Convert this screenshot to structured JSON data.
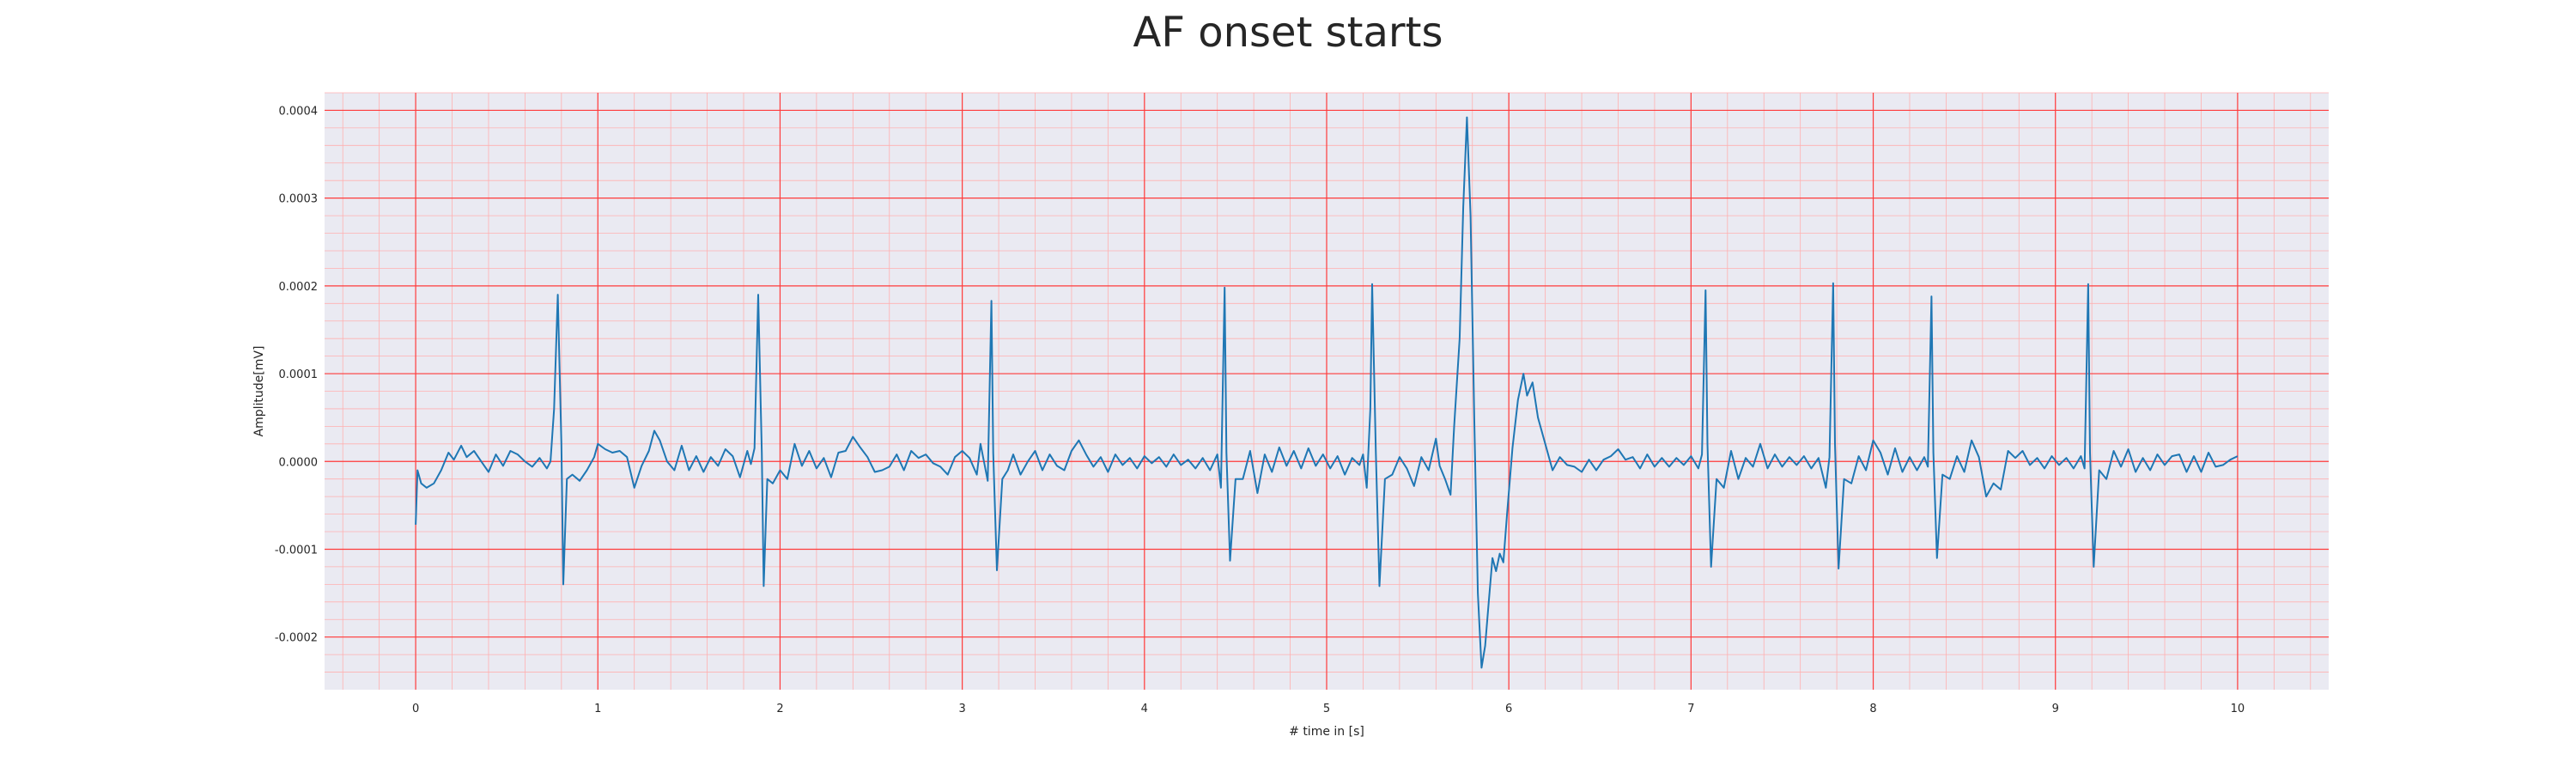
{
  "chart_data": {
    "type": "line",
    "title": "AF onset starts",
    "xlabel": "# time in [s]",
    "ylabel": "Amplitude[mV]",
    "xlim": [
      -0.5,
      10.5
    ],
    "ylim": [
      -0.00026,
      0.00042
    ],
    "x_ticks": [
      0,
      1,
      2,
      3,
      4,
      5,
      6,
      7,
      8,
      9,
      10
    ],
    "x_tick_labels": [
      "0",
      "1",
      "2",
      "3",
      "4",
      "5",
      "6",
      "7",
      "8",
      "9",
      "10"
    ],
    "y_ticks": [
      -0.0002,
      -0.0001,
      0.0,
      0.0001,
      0.0002,
      0.0003,
      0.0004
    ],
    "y_tick_labels": [
      "-0.0002",
      "-0.0001",
      "0.0000",
      "0.0001",
      "0.0002",
      "0.0003",
      "0.0004"
    ],
    "grid": true,
    "colors": {
      "background": "#eaeaf2",
      "major_grid": "#ff3b3b",
      "minor_grid": "#ffb0b0",
      "line": "#1f77b4"
    },
    "series": [
      {
        "points": [
          [
            0.0,
            -7.2e-05
          ],
          [
            0.01,
            -1e-05
          ],
          [
            0.03,
            -2.5e-05
          ],
          [
            0.06,
            -3e-05
          ],
          [
            0.1,
            -2.5e-05
          ],
          [
            0.14,
            -1e-05
          ],
          [
            0.18,
            1e-05
          ],
          [
            0.21,
            2e-06
          ],
          [
            0.25,
            1.8e-05
          ],
          [
            0.28,
            5e-06
          ],
          [
            0.32,
            1.2e-05
          ],
          [
            0.36,
            0.0
          ],
          [
            0.4,
            -1.2e-05
          ],
          [
            0.44,
            8e-06
          ],
          [
            0.48,
            -5e-06
          ],
          [
            0.52,
            1.2e-05
          ],
          [
            0.56,
            8e-06
          ],
          [
            0.6,
            0.0
          ],
          [
            0.64,
            -6e-06
          ],
          [
            0.68,
            4e-06
          ],
          [
            0.72,
            -8e-06
          ],
          [
            0.74,
            0.0
          ],
          [
            0.76,
            6e-05
          ],
          [
            0.78,
            0.00019
          ],
          [
            0.8,
            2e-05
          ],
          [
            0.81,
            -0.00014
          ],
          [
            0.83,
            -2e-05
          ],
          [
            0.86,
            -1.5e-05
          ],
          [
            0.9,
            -2.2e-05
          ],
          [
            0.94,
            -1e-05
          ],
          [
            0.98,
            5e-06
          ],
          [
            1.0,
            2e-05
          ],
          [
            1.04,
            1.4e-05
          ],
          [
            1.08,
            1e-05
          ],
          [
            1.12,
            1.2e-05
          ],
          [
            1.16,
            5e-06
          ],
          [
            1.2,
            -3e-05
          ],
          [
            1.24,
            -5e-06
          ],
          [
            1.28,
            1.2e-05
          ],
          [
            1.31,
            3.5e-05
          ],
          [
            1.34,
            2.4e-05
          ],
          [
            1.38,
            0.0
          ],
          [
            1.42,
            -1e-05
          ],
          [
            1.46,
            1.8e-05
          ],
          [
            1.5,
            -1e-05
          ],
          [
            1.54,
            6e-06
          ],
          [
            1.58,
            -1.2e-05
          ],
          [
            1.62,
            5e-06
          ],
          [
            1.66,
            -5e-06
          ],
          [
            1.7,
            1.4e-05
          ],
          [
            1.74,
            6e-06
          ],
          [
            1.78,
            -1.8e-05
          ],
          [
            1.82,
            1.2e-05
          ],
          [
            1.84,
            -3e-06
          ],
          [
            1.86,
            1.5e-05
          ],
          [
            1.88,
            0.00019
          ],
          [
            1.9,
            1e-05
          ],
          [
            1.91,
            -0.000142
          ],
          [
            1.93,
            -2e-05
          ],
          [
            1.96,
            -2.5e-05
          ],
          [
            2.0,
            -1e-05
          ],
          [
            2.04,
            -2e-05
          ],
          [
            2.08,
            2e-05
          ],
          [
            2.12,
            -5e-06
          ],
          [
            2.16,
            1.2e-05
          ],
          [
            2.2,
            -8e-06
          ],
          [
            2.24,
            4e-06
          ],
          [
            2.28,
            -1.8e-05
          ],
          [
            2.32,
            1e-05
          ],
          [
            2.36,
            1.2e-05
          ],
          [
            2.4,
            2.8e-05
          ],
          [
            2.44,
            1.6e-05
          ],
          [
            2.48,
            5e-06
          ],
          [
            2.52,
            -1.2e-05
          ],
          [
            2.56,
            -1e-05
          ],
          [
            2.6,
            -6e-06
          ],
          [
            2.64,
            8e-06
          ],
          [
            2.68,
            -1e-05
          ],
          [
            2.72,
            1.2e-05
          ],
          [
            2.76,
            4e-06
          ],
          [
            2.8,
            8e-06
          ],
          [
            2.84,
            -2e-06
          ],
          [
            2.88,
            -6e-06
          ],
          [
            2.92,
            -1.5e-05
          ],
          [
            2.96,
            5e-06
          ],
          [
            3.0,
            1.2e-05
          ],
          [
            3.04,
            4e-06
          ],
          [
            3.08,
            -1.5e-05
          ],
          [
            3.1,
            2e-05
          ],
          [
            3.14,
            -2.2e-05
          ],
          [
            3.16,
            0.000183
          ],
          [
            3.17,
            1e-05
          ],
          [
            3.19,
            -0.000124
          ],
          [
            3.22,
            -2e-05
          ],
          [
            3.25,
            -1e-05
          ],
          [
            3.28,
            8e-06
          ],
          [
            3.32,
            -1.5e-05
          ],
          [
            3.36,
            0.0
          ],
          [
            3.4,
            1.2e-05
          ],
          [
            3.44,
            -1e-05
          ],
          [
            3.48,
            8e-06
          ],
          [
            3.52,
            -5e-06
          ],
          [
            3.56,
            -1e-05
          ],
          [
            3.6,
            1.2e-05
          ],
          [
            3.64,
            2.4e-05
          ],
          [
            3.68,
            8e-06
          ],
          [
            3.72,
            -6e-06
          ],
          [
            3.76,
            5e-06
          ],
          [
            3.8,
            -1.2e-05
          ],
          [
            3.84,
            8e-06
          ],
          [
            3.88,
            -4e-06
          ],
          [
            3.92,
            4e-06
          ],
          [
            3.96,
            -8e-06
          ],
          [
            4.0,
            6e-06
          ],
          [
            4.04,
            -2e-06
          ],
          [
            4.08,
            5e-06
          ],
          [
            4.12,
            -6e-06
          ],
          [
            4.16,
            8e-06
          ],
          [
            4.2,
            -4e-06
          ],
          [
            4.24,
            2e-06
          ],
          [
            4.28,
            -8e-06
          ],
          [
            4.32,
            4e-06
          ],
          [
            4.36,
            -1e-05
          ],
          [
            4.4,
            8e-06
          ],
          [
            4.42,
            -3e-05
          ],
          [
            4.44,
            0.000198
          ],
          [
            4.45,
            1e-05
          ],
          [
            4.47,
            -0.000113
          ],
          [
            4.5,
            -2e-05
          ],
          [
            4.54,
            -2e-05
          ],
          [
            4.58,
            1.2e-05
          ],
          [
            4.62,
            -3.6e-05
          ],
          [
            4.66,
            8e-06
          ],
          [
            4.7,
            -1.2e-05
          ],
          [
            4.74,
            1.6e-05
          ],
          [
            4.78,
            -5e-06
          ],
          [
            4.82,
            1.2e-05
          ],
          [
            4.86,
            -8e-06
          ],
          [
            4.9,
            1.5e-05
          ],
          [
            4.94,
            -5e-06
          ],
          [
            4.98,
            8e-06
          ],
          [
            5.02,
            -8e-06
          ],
          [
            5.06,
            6e-06
          ],
          [
            5.1,
            -1.5e-05
          ],
          [
            5.14,
            4e-06
          ],
          [
            5.18,
            -4e-06
          ],
          [
            5.2,
            8e-06
          ],
          [
            5.22,
            -3e-05
          ],
          [
            5.24,
            6e-05
          ],
          [
            5.25,
            0.000202
          ],
          [
            5.27,
            1e-05
          ],
          [
            5.29,
            -0.000142
          ],
          [
            5.32,
            -2e-05
          ],
          [
            5.36,
            -1.5e-05
          ],
          [
            5.4,
            5e-06
          ],
          [
            5.44,
            -8e-06
          ],
          [
            5.48,
            -2.8e-05
          ],
          [
            5.52,
            5e-06
          ],
          [
            5.56,
            -1e-05
          ],
          [
            5.6,
            2.6e-05
          ],
          [
            5.62,
            -5e-06
          ],
          [
            5.65,
            -2e-05
          ],
          [
            5.68,
            -3.8e-05
          ],
          [
            5.7,
            4e-05
          ],
          [
            5.73,
            0.00014
          ],
          [
            5.75,
            0.00029
          ],
          [
            5.77,
            0.000392
          ],
          [
            5.79,
            0.00028
          ],
          [
            5.81,
            5e-05
          ],
          [
            5.83,
            -0.00015
          ],
          [
            5.85,
            -0.000235
          ],
          [
            5.87,
            -0.00021
          ],
          [
            5.89,
            -0.00016
          ],
          [
            5.91,
            -0.00011
          ],
          [
            5.93,
            -0.000125
          ],
          [
            5.95,
            -0.000105
          ],
          [
            5.97,
            -0.000115
          ],
          [
            5.99,
            -6e-05
          ],
          [
            6.02,
            1.5e-05
          ],
          [
            6.05,
            7e-05
          ],
          [
            6.08,
            0.0001
          ],
          [
            6.1,
            7.5e-05
          ],
          [
            6.13,
            9e-05
          ],
          [
            6.16,
            5e-05
          ],
          [
            6.2,
            2e-05
          ],
          [
            6.24,
            -1e-05
          ],
          [
            6.28,
            5e-06
          ],
          [
            6.32,
            -4e-06
          ],
          [
            6.36,
            -6e-06
          ],
          [
            6.4,
            -1.2e-05
          ],
          [
            6.44,
            2e-06
          ],
          [
            6.48,
            -1e-05
          ],
          [
            6.52,
            2e-06
          ],
          [
            6.56,
            6e-06
          ],
          [
            6.6,
            1.4e-05
          ],
          [
            6.64,
            2e-06
          ],
          [
            6.68,
            5e-06
          ],
          [
            6.72,
            -8e-06
          ],
          [
            6.76,
            8e-06
          ],
          [
            6.8,
            -6e-06
          ],
          [
            6.84,
            4e-06
          ],
          [
            6.88,
            -6e-06
          ],
          [
            6.92,
            4e-06
          ],
          [
            6.96,
            -4e-06
          ],
          [
            7.0,
            6e-06
          ],
          [
            7.04,
            -8e-06
          ],
          [
            7.06,
            8e-06
          ],
          [
            7.08,
            0.000195
          ],
          [
            7.09,
            2e-05
          ],
          [
            7.11,
            -0.00012
          ],
          [
            7.14,
            -2e-05
          ],
          [
            7.18,
            -3e-05
          ],
          [
            7.22,
            1.2e-05
          ],
          [
            7.26,
            -2e-05
          ],
          [
            7.3,
            4e-06
          ],
          [
            7.34,
            -6e-06
          ],
          [
            7.38,
            2e-05
          ],
          [
            7.42,
            -8e-06
          ],
          [
            7.46,
            8e-06
          ],
          [
            7.5,
            -6e-06
          ],
          [
            7.54,
            5e-06
          ],
          [
            7.58,
            -4e-06
          ],
          [
            7.62,
            6e-06
          ],
          [
            7.66,
            -8e-06
          ],
          [
            7.7,
            4e-06
          ],
          [
            7.74,
            -3e-05
          ],
          [
            7.76,
            5e-06
          ],
          [
            7.78,
            0.000203
          ],
          [
            7.79,
            2e-05
          ],
          [
            7.81,
            -0.000122
          ],
          [
            7.84,
            -2e-05
          ],
          [
            7.88,
            -2.5e-05
          ],
          [
            7.92,
            6e-06
          ],
          [
            7.96,
            -1e-05
          ],
          [
            8.0,
            2.4e-05
          ],
          [
            8.04,
            1e-05
          ],
          [
            8.08,
            -1.5e-05
          ],
          [
            8.12,
            1.5e-05
          ],
          [
            8.16,
            -1.2e-05
          ],
          [
            8.2,
            5e-06
          ],
          [
            8.24,
            -1e-05
          ],
          [
            8.28,
            5e-06
          ],
          [
            8.3,
            -6e-06
          ],
          [
            8.32,
            0.000188
          ],
          [
            8.33,
            1e-05
          ],
          [
            8.35,
            -0.00011
          ],
          [
            8.38,
            -1.5e-05
          ],
          [
            8.42,
            -2e-05
          ],
          [
            8.46,
            6e-06
          ],
          [
            8.5,
            -1.2e-05
          ],
          [
            8.54,
            2.4e-05
          ],
          [
            8.58,
            5e-06
          ],
          [
            8.62,
            -4e-05
          ],
          [
            8.66,
            -2.5e-05
          ],
          [
            8.7,
            -3.2e-05
          ],
          [
            8.74,
            1.2e-05
          ],
          [
            8.78,
            4e-06
          ],
          [
            8.82,
            1.2e-05
          ],
          [
            8.86,
            -4e-06
          ],
          [
            8.9,
            4e-06
          ],
          [
            8.94,
            -8e-06
          ],
          [
            8.98,
            6e-06
          ],
          [
            9.02,
            -4e-06
          ],
          [
            9.06,
            4e-06
          ],
          [
            9.1,
            -8e-06
          ],
          [
            9.14,
            6e-06
          ],
          [
            9.16,
            -8e-06
          ],
          [
            9.18,
            0.000202
          ],
          [
            9.19,
            1e-05
          ],
          [
            9.21,
            -0.00012
          ],
          [
            9.24,
            -1e-05
          ],
          [
            9.28,
            -2e-05
          ],
          [
            9.32,
            1.2e-05
          ],
          [
            9.36,
            -6e-06
          ],
          [
            9.4,
            1.4e-05
          ],
          [
            9.44,
            -1.2e-05
          ],
          [
            9.48,
            4e-06
          ],
          [
            9.52,
            -1e-05
          ],
          [
            9.56,
            8e-06
          ],
          [
            9.6,
            -4e-06
          ],
          [
            9.64,
            6e-06
          ],
          [
            9.68,
            8e-06
          ],
          [
            9.72,
            -1.2e-05
          ],
          [
            9.76,
            6e-06
          ],
          [
            9.8,
            -1.2e-05
          ],
          [
            9.84,
            1e-05
          ],
          [
            9.88,
            -6e-06
          ],
          [
            9.92,
            -4e-06
          ],
          [
            9.96,
            2e-06
          ],
          [
            10.0,
            6e-06
          ]
        ]
      }
    ]
  }
}
